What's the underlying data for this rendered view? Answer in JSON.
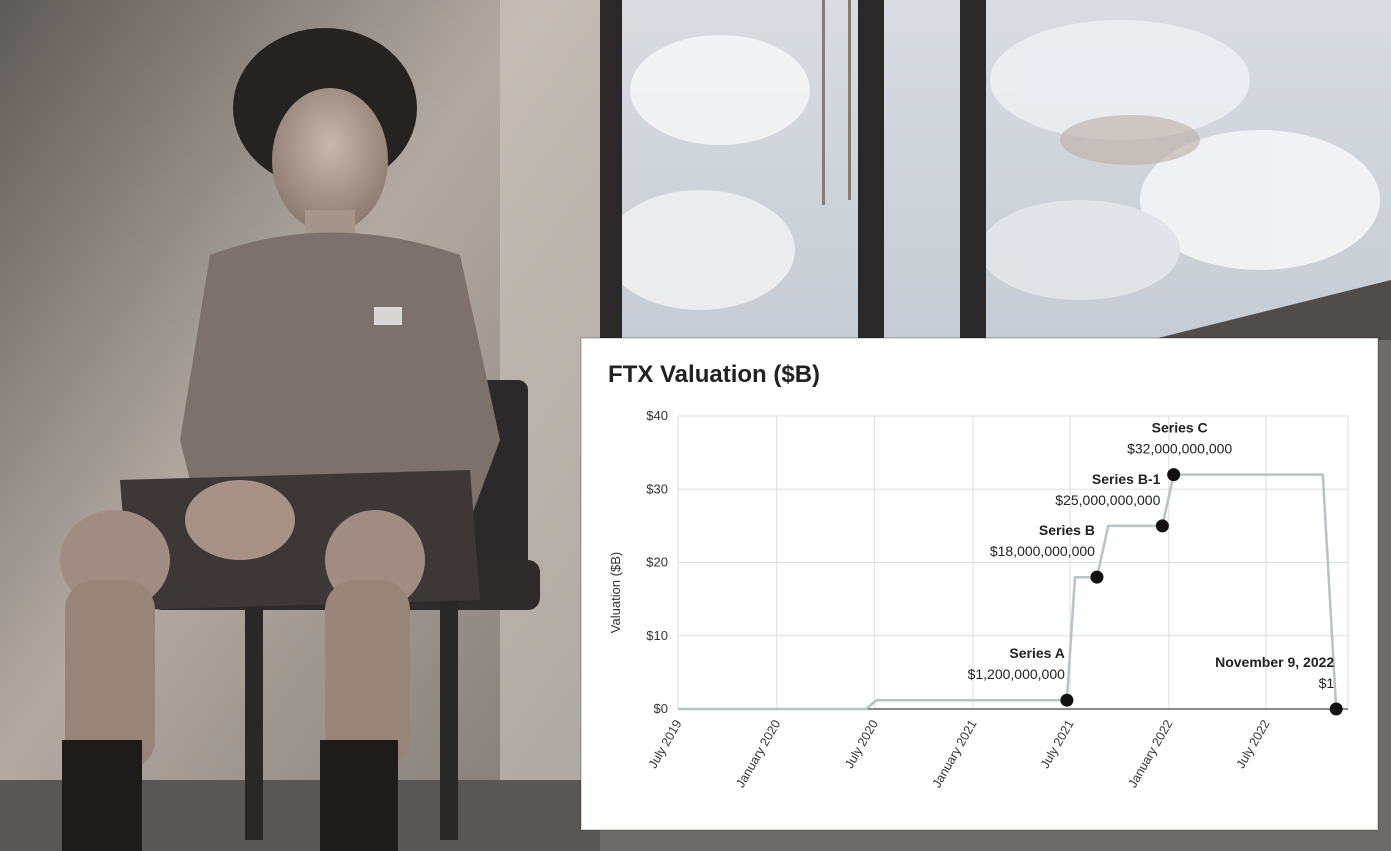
{
  "photo": {
    "subject": "man seated on office chair by a window",
    "tshirt_logo_text": ""
  },
  "colors": {
    "line": "#b5c4c7",
    "marker": "#111111",
    "grid": "#dedede",
    "axis": "#444444"
  },
  "chart_data": {
    "type": "line",
    "title": "FTX Valuation ($B)",
    "xlabel": "",
    "ylabel": "Valuation ($B)",
    "ylim": [
      0,
      40
    ],
    "yticks": [
      {
        "value": 0,
        "label": "$0"
      },
      {
        "value": 10,
        "label": "$10"
      },
      {
        "value": 20,
        "label": "$20"
      },
      {
        "value": 30,
        "label": "$30"
      },
      {
        "value": 40,
        "label": "$40"
      }
    ],
    "xlim": [
      "2019-07-01",
      "2022-12-01"
    ],
    "xticks": [
      {
        "date": "2019-07-01",
        "label": "July 2019"
      },
      {
        "date": "2020-01-01",
        "label": "January 2020"
      },
      {
        "date": "2020-07-01",
        "label": "July 2020"
      },
      {
        "date": "2021-01-01",
        "label": "January 2021"
      },
      {
        "date": "2021-07-01",
        "label": "July 2021"
      },
      {
        "date": "2022-01-01",
        "label": "January 2022"
      },
      {
        "date": "2022-07-01",
        "label": "July 2022"
      }
    ],
    "grid": true,
    "series": [
      {
        "points": [
          {
            "x": "2019-07-01",
            "y": 0
          },
          {
            "x": "2020-06-15",
            "y": 0
          },
          {
            "x": "2020-07-05",
            "y": 1.2
          },
          {
            "x": "2021-06-25",
            "y": 1.2
          },
          {
            "x": "2021-07-10",
            "y": 18
          },
          {
            "x": "2021-08-20",
            "y": 18
          },
          {
            "x": "2021-09-10",
            "y": 25
          },
          {
            "x": "2021-12-20",
            "y": 25
          },
          {
            "x": "2022-01-10",
            "y": 32
          },
          {
            "x": "2022-10-15",
            "y": 32
          },
          {
            "x": "2022-11-09",
            "y": 0
          }
        ]
      }
    ],
    "annotations": [
      {
        "x": "2021-06-25",
        "y": 1.2,
        "name": "Series A",
        "value": "$1,200,000,000",
        "anchor": "end"
      },
      {
        "x": "2021-08-20",
        "y": 18,
        "name": "Series B",
        "value": "$18,000,000,000",
        "anchor": "end"
      },
      {
        "x": "2021-12-20",
        "y": 25,
        "name": "Series B-1",
        "value": "$25,000,000,000",
        "anchor": "end"
      },
      {
        "x": "2022-01-10",
        "y": 32,
        "name": "Series C",
        "value": "$32,000,000,000",
        "anchor": "start"
      },
      {
        "x": "2022-11-09",
        "y": 0,
        "name": "November 9, 2022",
        "value": "$1",
        "anchor": "end"
      }
    ]
  }
}
